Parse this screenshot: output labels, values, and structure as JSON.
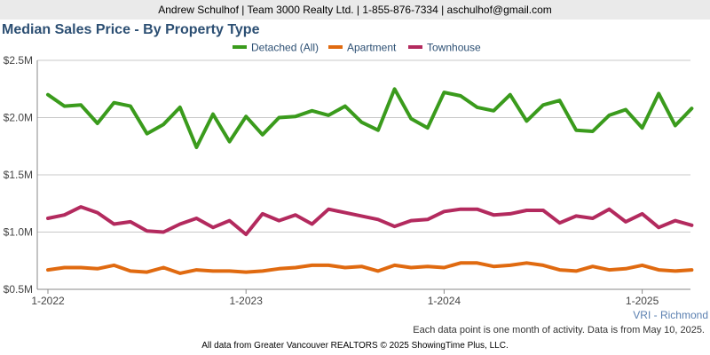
{
  "header": {
    "text": "Andrew Schulhof | Team 3000 Realty Ltd. | 1-855-876-7334 | aschulhof@gmail.com"
  },
  "title": "Median Sales Price - By Property Type",
  "region": "VRI - Richmond",
  "note": "Each data point is one month of activity. Data is from May 10, 2025.",
  "footer": "All data from Greater Vancouver REALTORS © 2025 ShowingTime Plus, LLC.",
  "chart_data": {
    "type": "line",
    "x_ticks": [
      "1-2022",
      "1-2023",
      "1-2024",
      "1-2025"
    ],
    "y_ticks": [
      "$0.5M",
      "$1.0M",
      "$1.5M",
      "$2.0M",
      "$2.5M"
    ],
    "y_tick_values": [
      0.5,
      1.0,
      1.5,
      2.0,
      2.5
    ],
    "ylim": [
      0.5,
      2.5
    ],
    "x_start": "2022-01",
    "series": [
      {
        "name": "Detached (All)",
        "color": "#3a9b1c",
        "values": [
          2.2,
          2.1,
          2.11,
          1.95,
          2.13,
          2.1,
          1.86,
          1.94,
          2.09,
          1.74,
          2.03,
          1.79,
          2.01,
          1.85,
          2.0,
          2.01,
          2.06,
          2.02,
          2.1,
          1.96,
          1.89,
          2.25,
          1.99,
          1.91,
          2.22,
          2.19,
          2.09,
          2.06,
          2.2,
          1.97,
          2.11,
          2.15,
          1.89,
          1.88,
          2.02,
          2.07,
          1.91,
          2.21,
          1.93,
          2.08
        ]
      },
      {
        "name": "Apartment",
        "color": "#e06a10",
        "values": [
          0.67,
          0.69,
          0.69,
          0.68,
          0.71,
          0.66,
          0.65,
          0.69,
          0.64,
          0.67,
          0.66,
          0.66,
          0.65,
          0.66,
          0.68,
          0.69,
          0.71,
          0.71,
          0.69,
          0.7,
          0.66,
          0.71,
          0.69,
          0.7,
          0.69,
          0.73,
          0.73,
          0.7,
          0.71,
          0.73,
          0.71,
          0.67,
          0.66,
          0.7,
          0.67,
          0.68,
          0.71,
          0.67,
          0.66,
          0.67
        ]
      },
      {
        "name": "Townhouse",
        "color": "#b32a5e",
        "values": [
          1.12,
          1.15,
          1.22,
          1.17,
          1.07,
          1.09,
          1.01,
          1.0,
          1.07,
          1.12,
          1.04,
          1.1,
          0.98,
          1.16,
          1.1,
          1.15,
          1.07,
          1.2,
          1.17,
          1.14,
          1.11,
          1.05,
          1.1,
          1.11,
          1.18,
          1.2,
          1.2,
          1.15,
          1.16,
          1.19,
          1.19,
          1.08,
          1.14,
          1.12,
          1.2,
          1.09,
          1.16,
          1.04,
          1.1,
          1.06
        ]
      }
    ]
  }
}
